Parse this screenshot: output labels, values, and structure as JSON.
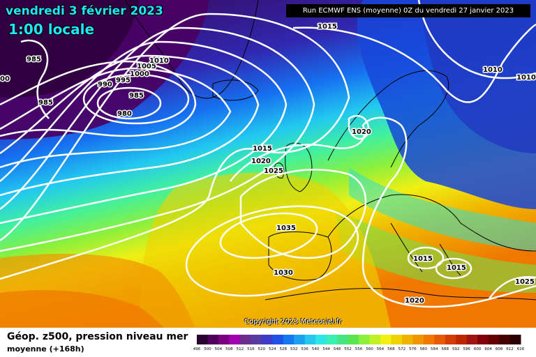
{
  "header": {
    "date": "vendredi 3 février 2023",
    "local_time": "1:00 locale",
    "run": "Run ECMWF ENS (moyenne) 0Z du vendredi 27 janvier 2023"
  },
  "footer": {
    "title": "Géop. z500, pression niveau mer",
    "subtitle": "moyenne  (+168h)",
    "copyright": "Copyright 2023 Meteociel.fr"
  },
  "legend": {
    "ticks": [
      "496",
      "500",
      "504",
      "508",
      "512",
      "516",
      "520",
      "524",
      "528",
      "532",
      "536",
      "540",
      "544",
      "548",
      "552",
      "556",
      "560",
      "564",
      "568",
      "572",
      "576",
      "580",
      "584",
      "588",
      "592",
      "596",
      "600",
      "604",
      "608",
      "612",
      "616"
    ],
    "colors": [
      "#2a0030",
      "#50005a",
      "#7a0080",
      "#a000b0",
      "#6e2c8c",
      "#5a3ca0",
      "#3c3cc8",
      "#2050e6",
      "#1478f0",
      "#1ca0f0",
      "#26c8f0",
      "#2ee6e6",
      "#3cf0b4",
      "#46e682",
      "#5ae650",
      "#8cf03c",
      "#c0f028",
      "#f0f014",
      "#f0d200",
      "#f0b400",
      "#f09600",
      "#f07800",
      "#e65a00",
      "#d23c00",
      "#be2800",
      "#a01414",
      "#82000a",
      "#640000",
      "#460000",
      "#2a0000"
    ]
  },
  "map": {
    "isobars": [
      {
        "label": "985",
        "lon_lat": "low center N"
      },
      {
        "label": "990"
      },
      {
        "label": "995"
      },
      {
        "label": "1000"
      },
      {
        "label": "1005"
      },
      {
        "label": "1010"
      },
      {
        "label": "1015"
      },
      {
        "label": "1020"
      },
      {
        "label": "1025"
      },
      {
        "label": "1030"
      },
      {
        "label": "1035"
      },
      {
        "label": "980"
      }
    ],
    "pressure_labels": [
      {
        "text": "985",
        "where": "nw-low"
      },
      {
        "text": "985",
        "where": "nw-low-2"
      },
      {
        "text": "985",
        "where": "low-center"
      },
      {
        "text": "990",
        "where": "ring"
      },
      {
        "text": "995",
        "where": "ring"
      },
      {
        "text": "1000",
        "where": "ring"
      },
      {
        "text": "1005",
        "where": "ring"
      },
      {
        "text": "1010",
        "where": "ring"
      },
      {
        "text": "980",
        "where": "low-core"
      },
      {
        "text": "1015",
        "where": "north"
      },
      {
        "text": "1010",
        "where": "scandinavia"
      },
      {
        "text": "1010",
        "where": "east"
      },
      {
        "text": "1020",
        "where": "norway"
      },
      {
        "text": "1015",
        "where": "atlantic"
      },
      {
        "text": "1020",
        "where": "atlantic"
      },
      {
        "text": "1025",
        "where": "atlantic"
      },
      {
        "text": "1035",
        "where": "high"
      },
      {
        "text": "1030",
        "where": "high"
      },
      {
        "text": "1015",
        "where": "balkans"
      },
      {
        "text": "1015",
        "where": "greece"
      },
      {
        "text": "1025",
        "where": "east-med"
      },
      {
        "text": "1020",
        "where": "libya"
      },
      {
        "text": "00",
        "where": "edge"
      }
    ]
  }
}
